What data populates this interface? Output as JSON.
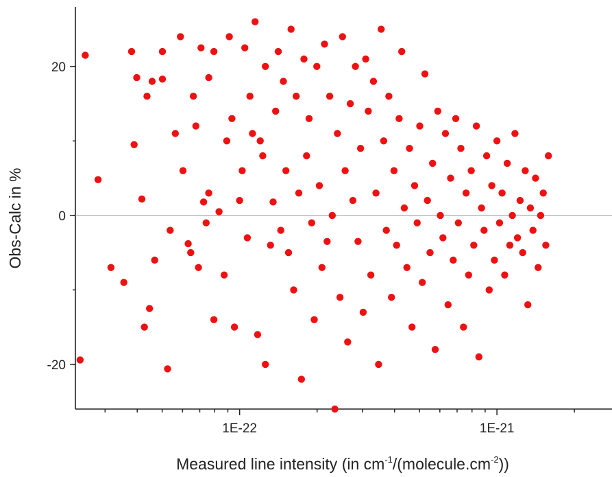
{
  "chart_data": {
    "type": "scatter",
    "title": "",
    "xlabel": {
      "text": "Measured line intensity (in cm",
      "sup1": "-1",
      "mid": "/(molecule.cm",
      "sup2": "-2",
      "end": "))"
    },
    "ylabel": "Obs-Calc in %",
    "x_scale": "log",
    "xlim": [
      2.3e-23,
      2.8e-21
    ],
    "ylim": [
      -26,
      28
    ],
    "x_ticks": [
      {
        "value": 1e-22,
        "label": "1E-22"
      },
      {
        "value": 1e-21,
        "label": "1E-21"
      }
    ],
    "y_ticks": [
      {
        "value": -20,
        "label": "-20"
      },
      {
        "value": 0,
        "label": "0"
      },
      {
        "value": 20,
        "label": "20"
      }
    ],
    "zero_line": true,
    "grid": false,
    "marker_color": "#ee1111",
    "axis_color": "#222222",
    "zero_line_color": "#999999",
    "points": [
      [
        -22.6,
        21.5
      ],
      [
        -22.62,
        -19.4
      ],
      [
        -22.55,
        4.8
      ],
      [
        -22.5,
        -7
      ],
      [
        -22.45,
        -9
      ],
      [
        -22.42,
        22
      ],
      [
        -22.41,
        9.5
      ],
      [
        -22.4,
        18.5
      ],
      [
        -22.38,
        2.2
      ],
      [
        -22.37,
        -15
      ],
      [
        -22.36,
        16
      ],
      [
        -22.35,
        -12.5
      ],
      [
        -22.34,
        18
      ],
      [
        -22.33,
        -6
      ],
      [
        -22.3,
        22
      ],
      [
        -22.3,
        18.3
      ],
      [
        -22.28,
        -20.6
      ],
      [
        -22.27,
        -2
      ],
      [
        -22.25,
        11
      ],
      [
        -22.23,
        24
      ],
      [
        -22.22,
        6
      ],
      [
        -22.2,
        -3.8
      ],
      [
        -22.19,
        -5
      ],
      [
        -22.18,
        16
      ],
      [
        -22.17,
        12
      ],
      [
        -22.16,
        -7
      ],
      [
        -22.15,
        22.5
      ],
      [
        -22.14,
        1.8
      ],
      [
        -22.13,
        -1
      ],
      [
        -22.12,
        3
      ],
      [
        -22.12,
        18.5
      ],
      [
        -22.1,
        -14
      ],
      [
        -22.1,
        22
      ],
      [
        -22.08,
        0.5
      ],
      [
        -22.06,
        -8
      ],
      [
        -22.05,
        10
      ],
      [
        -22.04,
        24
      ],
      [
        -22.03,
        13
      ],
      [
        -22.02,
        -15
      ],
      [
        -22.0,
        2
      ],
      [
        -21.99,
        6
      ],
      [
        -21.98,
        22.5
      ],
      [
        -21.97,
        -3
      ],
      [
        -21.96,
        16
      ],
      [
        -21.95,
        11
      ],
      [
        -21.94,
        26
      ],
      [
        -21.93,
        -16
      ],
      [
        -21.92,
        10
      ],
      [
        -21.91,
        8
      ],
      [
        -21.9,
        -20
      ],
      [
        -21.9,
        20
      ],
      [
        -21.88,
        -4
      ],
      [
        -21.87,
        1.8
      ],
      [
        -21.86,
        14
      ],
      [
        -21.85,
        22
      ],
      [
        -21.84,
        -2
      ],
      [
        -21.83,
        18
      ],
      [
        -21.82,
        6
      ],
      [
        -21.81,
        -5
      ],
      [
        -21.8,
        25
      ],
      [
        -21.79,
        -10
      ],
      [
        -21.78,
        16
      ],
      [
        -21.77,
        3
      ],
      [
        -21.76,
        -22
      ],
      [
        -21.75,
        21
      ],
      [
        -21.74,
        8
      ],
      [
        -21.73,
        13
      ],
      [
        -21.72,
        -1
      ],
      [
        -21.71,
        -14
      ],
      [
        -21.7,
        20
      ],
      [
        -21.69,
        4
      ],
      [
        -21.68,
        -7
      ],
      [
        -21.67,
        23
      ],
      [
        -21.66,
        -3.5
      ],
      [
        -21.65,
        16
      ],
      [
        -21.64,
        0
      ],
      [
        -21.63,
        -26
      ],
      [
        -21.62,
        11
      ],
      [
        -21.61,
        -11
      ],
      [
        -21.6,
        24
      ],
      [
        -21.59,
        6
      ],
      [
        -21.58,
        -17
      ],
      [
        -21.57,
        15
      ],
      [
        -21.56,
        2
      ],
      [
        -21.55,
        20
      ],
      [
        -21.54,
        -3.5
      ],
      [
        -21.53,
        9
      ],
      [
        -21.52,
        -13
      ],
      [
        -21.51,
        21
      ],
      [
        -21.5,
        14
      ],
      [
        -21.49,
        -8
      ],
      [
        -21.48,
        18
      ],
      [
        -21.47,
        3
      ],
      [
        -21.46,
        -20
      ],
      [
        -21.45,
        25
      ],
      [
        -21.44,
        10
      ],
      [
        -21.43,
        -2
      ],
      [
        -21.42,
        16
      ],
      [
        -21.41,
        -11
      ],
      [
        -21.4,
        6
      ],
      [
        -21.39,
        -4
      ],
      [
        -21.38,
        13
      ],
      [
        -21.37,
        22
      ],
      [
        -21.36,
        1
      ],
      [
        -21.35,
        -7
      ],
      [
        -21.34,
        9
      ],
      [
        -21.33,
        -15
      ],
      [
        -21.32,
        4
      ],
      [
        -21.31,
        -1
      ],
      [
        -21.3,
        12
      ],
      [
        -21.29,
        -9
      ],
      [
        -21.28,
        19
      ],
      [
        -21.27,
        2
      ],
      [
        -21.26,
        -5
      ],
      [
        -21.25,
        7
      ],
      [
        -21.24,
        -18
      ],
      [
        -21.23,
        14
      ],
      [
        -21.22,
        0
      ],
      [
        -21.21,
        -3
      ],
      [
        -21.2,
        11
      ],
      [
        -21.19,
        -12
      ],
      [
        -21.18,
        5
      ],
      [
        -21.17,
        -6
      ],
      [
        -21.16,
        13
      ],
      [
        -21.15,
        -1
      ],
      [
        -21.14,
        9
      ],
      [
        -21.13,
        -15
      ],
      [
        -21.12,
        3
      ],
      [
        -21.11,
        -8
      ],
      [
        -21.1,
        6
      ],
      [
        -21.09,
        -4
      ],
      [
        -21.08,
        12
      ],
      [
        -21.07,
        -19
      ],
      [
        -21.06,
        1
      ],
      [
        -21.05,
        -2
      ],
      [
        -21.04,
        8
      ],
      [
        -21.03,
        -10
      ],
      [
        -21.02,
        4
      ],
      [
        -21.01,
        -6
      ],
      [
        -21.0,
        10
      ],
      [
        -20.99,
        -1
      ],
      [
        -20.98,
        3
      ],
      [
        -20.97,
        -8
      ],
      [
        -20.96,
        7
      ],
      [
        -20.95,
        -4
      ],
      [
        -20.94,
        0
      ],
      [
        -20.93,
        11
      ],
      [
        -20.92,
        -3
      ],
      [
        -20.91,
        2
      ],
      [
        -20.9,
        -5
      ],
      [
        -20.89,
        6
      ],
      [
        -20.88,
        -12
      ],
      [
        -20.87,
        1
      ],
      [
        -20.86,
        -2
      ],
      [
        -20.85,
        5
      ],
      [
        -20.84,
        -7
      ],
      [
        -20.83,
        0
      ],
      [
        -20.82,
        3
      ],
      [
        -20.81,
        -4
      ],
      [
        -20.8,
        8
      ]
    ]
  }
}
